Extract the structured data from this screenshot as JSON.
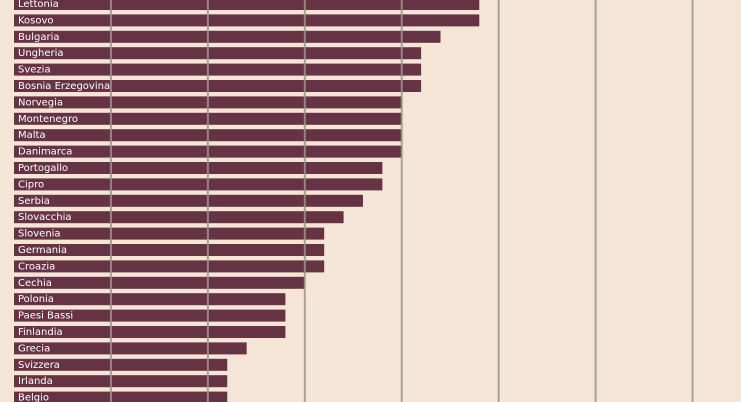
{
  "chart_data": {
    "type": "barh",
    "categories": [
      "Lettonia",
      "Kosovo",
      "Bulgaria",
      "Ungheria",
      "Svezia",
      "Bosnia Erzegovina",
      "Norvegia",
      "Montenegro",
      "Malta",
      "Danimarca",
      "Portogallo",
      "Cipro",
      "Serbia",
      "Slovacchia",
      "Slovenia",
      "Germania",
      "Croazia",
      "Cechia",
      "Polonia",
      "Paesi Bassi",
      "Finlandia",
      "Grecia",
      "Svizzera",
      "Irlanda",
      "Belgio"
    ],
    "values": [
      4.8,
      4.8,
      4.4,
      4.2,
      4.2,
      4.2,
      4.0,
      4.0,
      4.0,
      4.0,
      3.8,
      3.8,
      3.6,
      3.4,
      3.2,
      3.2,
      3.2,
      3.0,
      2.8,
      2.8,
      2.8,
      2.4,
      2.2,
      2.2,
      2.2
    ],
    "color": "#663344",
    "xlim": [
      0,
      7.5
    ],
    "xgrid": [
      1,
      2,
      3,
      4,
      5,
      6,
      7
    ],
    "grid": true
  }
}
